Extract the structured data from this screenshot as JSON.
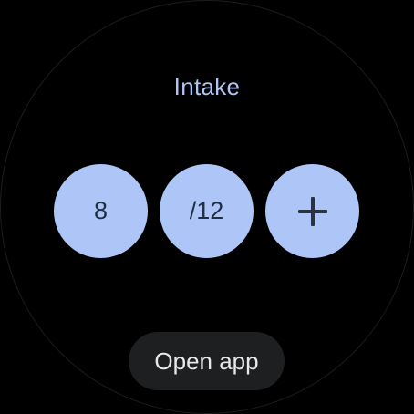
{
  "tile": {
    "title": "Intake",
    "count": "8",
    "goal": "/12",
    "add_icon": "plus-icon"
  },
  "footer": {
    "open_app_label": "Open app"
  },
  "colors": {
    "background": "#000000",
    "accent": "#aec6f7",
    "chip": "#1e1f21",
    "on_accent_text": "#1f2e45"
  }
}
